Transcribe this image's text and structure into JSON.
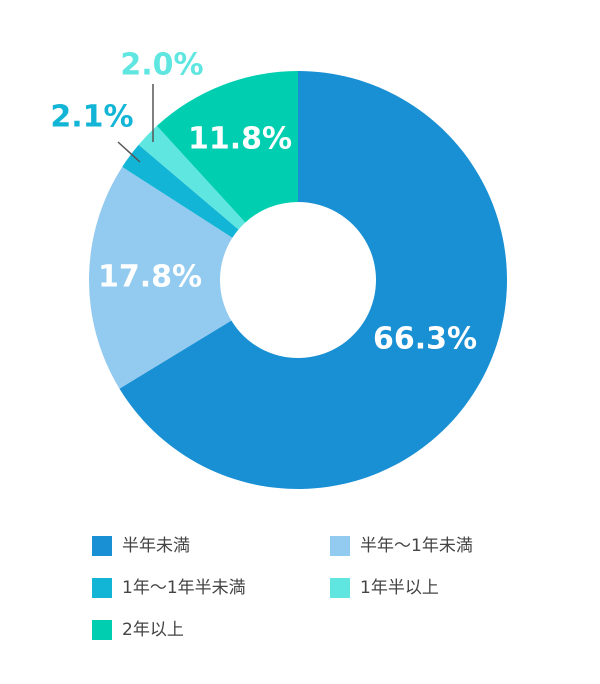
{
  "chart_data": {
    "type": "donut",
    "categories": [
      "半年未満",
      "半年〜1年未満",
      "1年〜1年半未満",
      "1年半以上",
      "2年以上"
    ],
    "values": [
      66.3,
      17.8,
      2.1,
      2.0,
      11.8
    ],
    "value_labels": [
      "66.3%",
      "17.8%",
      "2.1%",
      "2.0%",
      "11.8%"
    ],
    "colors": [
      "#1a90d4",
      "#92cbef",
      "#12b5d5",
      "#5fe6e0",
      "#00ceb1"
    ]
  }
}
